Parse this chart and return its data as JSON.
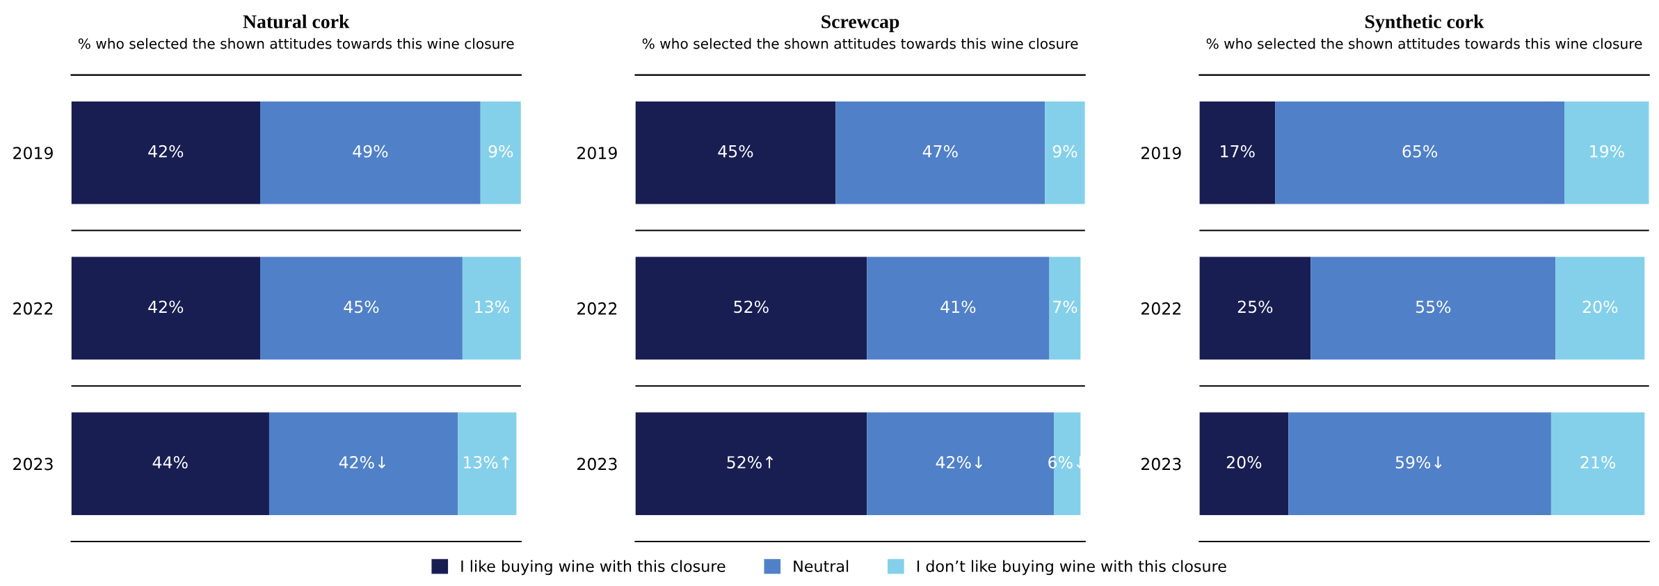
{
  "chart_data": [
    {
      "type": "bar",
      "orientation": "horizontal",
      "stacked": true,
      "title": "Natural cork",
      "subtitle": "% who selected the shown attitudes towards this wine closure",
      "categories": [
        "2019",
        "2022",
        "2023"
      ],
      "grid": "y",
      "legend": "bottom",
      "data_labels": true,
      "series": [
        {
          "name": "I like buying wine with this closure",
          "color": "#181d52",
          "values": [
            42,
            42,
            44
          ],
          "value_labels": [
            "42%",
            "42%",
            "44%"
          ]
        },
        {
          "name": "Neutral",
          "color": "#5080c8",
          "values": [
            49,
            45,
            42
          ],
          "value_labels": [
            "49%",
            "45%",
            "42%↓"
          ]
        },
        {
          "name": "I don’t like buying wine with this closure",
          "color": "#84d0ea",
          "values": [
            9,
            13,
            13
          ],
          "value_labels": [
            "9%",
            "13%",
            "13%↑"
          ]
        }
      ]
    },
    {
      "type": "bar",
      "orientation": "horizontal",
      "stacked": true,
      "title": "Screwcap",
      "subtitle": "% who selected the shown attitudes towards this wine closure",
      "categories": [
        "2019",
        "2022",
        "2023"
      ],
      "grid": "y",
      "data_labels": true,
      "series": [
        {
          "color": "#181d52",
          "values": [
            45,
            52,
            52
          ],
          "value_labels": [
            "45%",
            "52%",
            "52%↑"
          ]
        },
        {
          "color": "#5080c8",
          "values": [
            47,
            41,
            42
          ],
          "value_labels": [
            "47%",
            "41%",
            "42%↓"
          ]
        },
        {
          "color": "#84d0ea",
          "values": [
            9,
            7,
            6
          ],
          "value_labels": [
            "9%",
            "7%",
            "6%↓"
          ]
        }
      ]
    },
    {
      "type": "bar",
      "orientation": "horizontal",
      "stacked": true,
      "title": "Synthetic cork",
      "subtitle": "% who selected the shown attitudes towards this wine closure",
      "categories": [
        "2019",
        "2022",
        "2023"
      ],
      "grid": "y",
      "data_labels": true,
      "series": [
        {
          "color": "#181d52",
          "values": [
            17,
            25,
            20
          ],
          "value_labels": [
            "17%",
            "25%",
            "20%"
          ]
        },
        {
          "color": "#5080c8",
          "values": [
            65,
            55,
            59
          ],
          "value_labels": [
            "65%",
            "55%",
            "59%↓"
          ]
        },
        {
          "color": "#84d0ea",
          "values": [
            19,
            20,
            21
          ],
          "value_labels": [
            "19%",
            "20%",
            "21%"
          ]
        }
      ]
    }
  ]
}
